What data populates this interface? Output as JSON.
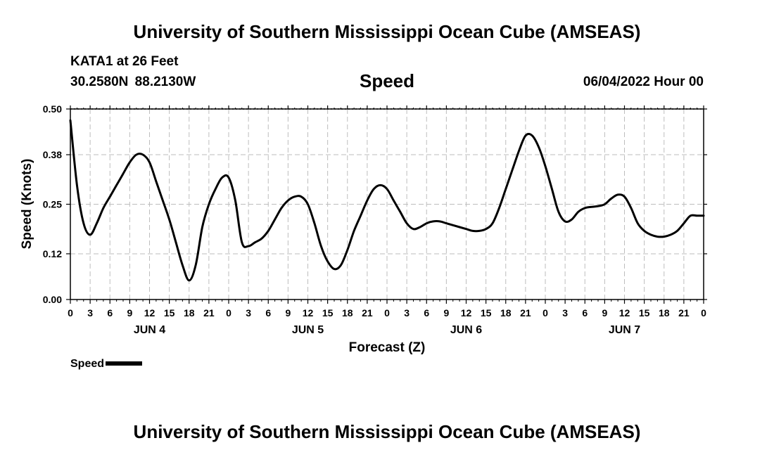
{
  "header": {
    "title": "University of Southern Mississippi Ocean Cube (AMSEAS)",
    "station": "KATA1 at 26 Feet",
    "coordinates": "30.2580N  88.2130W",
    "chart_title": "Speed",
    "timestamp": "06/04/2022 Hour 00"
  },
  "footer": {
    "title": "University of Southern Mississippi Ocean Cube (AMSEAS)"
  },
  "legend": {
    "label": "Speed",
    "color": "#000000"
  },
  "chart_data": {
    "type": "line",
    "title": "Speed",
    "xlabel": "Forecast (Z)",
    "ylabel": "Speed (Knots)",
    "xlim": [
      0,
      96
    ],
    "ylim": [
      0,
      0.5
    ],
    "y_ticks": [
      0.0,
      0.12,
      0.25,
      0.38,
      0.5
    ],
    "y_tick_labels": [
      "0.00",
      "0.12",
      "0.25",
      "0.38",
      "0.50"
    ],
    "x_tick_hours": [
      0,
      3,
      6,
      9,
      12,
      15,
      18,
      21,
      24,
      27,
      30,
      33,
      36,
      39,
      42,
      45,
      48,
      51,
      54,
      57,
      60,
      63,
      66,
      69,
      72,
      75,
      78,
      81,
      84,
      87,
      90,
      93,
      96
    ],
    "x_tick_labels": [
      "0",
      "3",
      "6",
      "9",
      "12",
      "15",
      "18",
      "21",
      "0",
      "3",
      "6",
      "9",
      "12",
      "15",
      "18",
      "21",
      "0",
      "3",
      "6",
      "9",
      "12",
      "15",
      "18",
      "21",
      "0",
      "3",
      "6",
      "9",
      "12",
      "15",
      "18",
      "21",
      "0"
    ],
    "day_labels": [
      {
        "label": "JUN 4",
        "hour": 12
      },
      {
        "label": "JUN 5",
        "hour": 36
      },
      {
        "label": "JUN 6",
        "hour": 60
      },
      {
        "label": "JUN 7",
        "hour": 84
      }
    ],
    "grid": true,
    "legend_position": "bottom-left",
    "series": [
      {
        "name": "Speed",
        "color": "#000000",
        "x": [
          0,
          1,
          2,
          3,
          4,
          5,
          6,
          7,
          8,
          9,
          10,
          11,
          12,
          13,
          14,
          15,
          16,
          17,
          18,
          19,
          20,
          21,
          22,
          23,
          24,
          25,
          26,
          27,
          28,
          29,
          30,
          31,
          32,
          33,
          34,
          35,
          36,
          37,
          38,
          39,
          40,
          41,
          42,
          43,
          44,
          45,
          46,
          47,
          48,
          49,
          50,
          51,
          52,
          53,
          54,
          55,
          56,
          57,
          58,
          59,
          60,
          61,
          62,
          63,
          64,
          65,
          66,
          67,
          68,
          69,
          70,
          71,
          72,
          73,
          74,
          75,
          76,
          77,
          78,
          79,
          80,
          81,
          82,
          83,
          84,
          85,
          86,
          87,
          88,
          89,
          90,
          91,
          92,
          93,
          94,
          95,
          96
        ],
        "values": [
          0.47,
          0.3,
          0.2,
          0.17,
          0.2,
          0.24,
          0.27,
          0.3,
          0.33,
          0.36,
          0.38,
          0.38,
          0.36,
          0.31,
          0.26,
          0.21,
          0.15,
          0.09,
          0.05,
          0.09,
          0.19,
          0.25,
          0.29,
          0.32,
          0.32,
          0.26,
          0.15,
          0.14,
          0.15,
          0.16,
          0.18,
          0.21,
          0.24,
          0.26,
          0.27,
          0.27,
          0.25,
          0.2,
          0.14,
          0.1,
          0.08,
          0.09,
          0.13,
          0.18,
          0.22,
          0.26,
          0.29,
          0.3,
          0.29,
          0.26,
          0.23,
          0.2,
          0.185,
          0.19,
          0.2,
          0.205,
          0.205,
          0.2,
          0.195,
          0.19,
          0.185,
          0.18,
          0.18,
          0.185,
          0.2,
          0.24,
          0.29,
          0.34,
          0.39,
          0.43,
          0.43,
          0.4,
          0.35,
          0.29,
          0.23,
          0.205,
          0.21,
          0.23,
          0.24,
          0.243,
          0.245,
          0.25,
          0.265,
          0.275,
          0.27,
          0.24,
          0.2,
          0.18,
          0.17,
          0.165,
          0.165,
          0.17,
          0.18,
          0.2,
          0.22,
          0.22,
          0.22
        ]
      }
    ]
  }
}
